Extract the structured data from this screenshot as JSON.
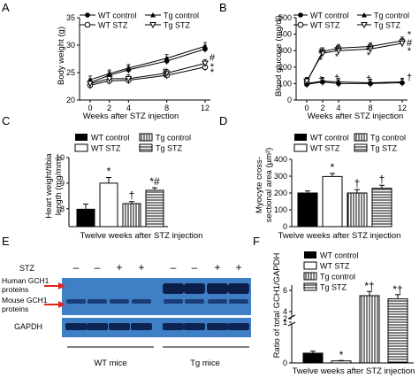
{
  "chart_data": [
    {
      "panel": "A",
      "type": "line",
      "xlabel": "Weeks after STZ injection",
      "ylabel": "Body weight (g)",
      "xticks": [
        0,
        2,
        4,
        8,
        12
      ],
      "yticks": [
        20,
        25,
        30,
        35
      ],
      "ylim": [
        20,
        35
      ],
      "legend_position": "top-left",
      "series": [
        {
          "name": "WT control",
          "marker": "filled-circle",
          "values": [
            23.2,
            24.5,
            25.5,
            27.1,
            29.3
          ]
        },
        {
          "name": "WT STZ",
          "marker": "open-circle",
          "values": [
            22.7,
            23.5,
            23.6,
            24.5,
            26.0
          ]
        },
        {
          "name": "Tg control",
          "marker": "filled-triangle",
          "values": [
            23.7,
            24.8,
            25.8,
            27.6,
            29.8
          ]
        },
        {
          "name": "Tg STZ",
          "marker": "open-triangle",
          "values": [
            23.0,
            23.9,
            23.9,
            24.9,
            26.7
          ]
        }
      ],
      "annotations": [
        {
          "text": "*",
          "x": 8,
          "y": 24.2
        },
        {
          "text": "#",
          "x": 8,
          "y": 25.3
        },
        {
          "text": "#",
          "x": 12,
          "y": 27.8
        },
        {
          "text": "*",
          "x": 12,
          "y": 26.1
        },
        {
          "text": "*",
          "x": 12,
          "y": 25.2
        }
      ]
    },
    {
      "panel": "B",
      "type": "line",
      "xlabel": "Weeks after STZ injection",
      "ylabel": "Blood glucose (mg/dl)",
      "xticks": [
        0,
        2,
        4,
        8,
        12
      ],
      "yticks": [
        0,
        100,
        200,
        300,
        400,
        500
      ],
      "ylim": [
        0,
        500
      ],
      "legend_position": "top",
      "series": [
        {
          "name": "WT control",
          "marker": "filled-circle",
          "values": [
            95,
            110,
            100,
            100,
            105
          ]
        },
        {
          "name": "WT STZ",
          "marker": "open-circle",
          "values": [
            110,
            295,
            315,
            325,
            360
          ]
        },
        {
          "name": "Tg control",
          "marker": "filled-triangle",
          "values": [
            100,
            115,
            110,
            105,
            110
          ]
        },
        {
          "name": "Tg STZ",
          "marker": "open-triangle",
          "values": [
            115,
            285,
            300,
            310,
            345
          ]
        }
      ],
      "annotations": [
        {
          "text": "#",
          "x": 2,
          "y": 300
        },
        {
          "text": "*",
          "x": 2,
          "y": 245
        },
        {
          "text": "#",
          "x": 4,
          "y": 315
        },
        {
          "text": "*",
          "x": 4,
          "y": 265
        },
        {
          "text": "#",
          "x": 8,
          "y": 320
        },
        {
          "text": "*",
          "x": 8,
          "y": 275
        },
        {
          "text": "*",
          "x": 12,
          "y": 400
        },
        {
          "text": "#",
          "x": 12,
          "y": 350
        },
        {
          "text": "*",
          "x": 12,
          "y": 300
        },
        {
          "text": "†",
          "x": 2,
          "y": 125
        },
        {
          "text": "†",
          "x": 4,
          "y": 135
        },
        {
          "text": "†",
          "x": 8,
          "y": 130
        },
        {
          "text": "†",
          "x": 12,
          "y": 140
        }
      ]
    },
    {
      "panel": "C",
      "type": "bar",
      "xlabel": "Twelve weeks after STZ injection",
      "ylabel": "Heart weight/tibia length (mg/mm)",
      "yticks": [
        8,
        9,
        10
      ],
      "ylim": [
        7.3,
        10
      ],
      "legend_position": "top",
      "categories": [
        "WT control",
        "WT STZ",
        "Tg control",
        "Tg STZ"
      ],
      "values": [
        7.98,
        9.0,
        8.2,
        8.72
      ],
      "errors": [
        0.2,
        0.22,
        0.08,
        0.1
      ],
      "labels": [
        "",
        "*",
        "†",
        "*#"
      ]
    },
    {
      "panel": "D",
      "type": "bar",
      "xlabel": "Twelve weeks after STZ injection",
      "ylabel": "Myocyte cross-sectional area (µm²)",
      "yticks": [
        0,
        100,
        200,
        300,
        400
      ],
      "ylim": [
        0,
        400
      ],
      "legend_position": "top",
      "categories": [
        "WT control",
        "WT STZ",
        "Tg control",
        "Tg STZ"
      ],
      "values": [
        200,
        298,
        200,
        228
      ],
      "errors": [
        12,
        18,
        20,
        18
      ],
      "labels": [
        "",
        "*",
        "†",
        "†"
      ]
    },
    {
      "panel": "F",
      "type": "bar",
      "xlabel": "Twelve weeks after STZ injection",
      "ylabel": "Ratio of total GCH1/GAPDH",
      "yticks": [
        0,
        1,
        2,
        4,
        6
      ],
      "ylim": [
        0,
        7
      ],
      "axis_break": true,
      "legend_position": "top-left",
      "categories": [
        "WT control",
        "WT STZ",
        "Tg control",
        "Tg STZ"
      ],
      "values": [
        0.24,
        0.05,
        5.5,
        5.2
      ],
      "errors": [
        0.05,
        0.01,
        0.4,
        0.4
      ],
      "labels": [
        "",
        "*",
        "*†",
        "*†"
      ]
    }
  ],
  "panel_letters": [
    "A",
    "B",
    "C",
    "D",
    "E",
    "F"
  ],
  "western_blot": {
    "stz_label": "STZ",
    "stz_marks": [
      "–",
      "–",
      "+",
      "+",
      "–",
      "–",
      "+",
      "+"
    ],
    "arrow_labels": [
      "Human GCH1 proteins",
      "Mouse GCH1 proteins"
    ],
    "gapdh_label": "GAPDH",
    "group_labels": [
      "WT mice",
      "Tg mice"
    ],
    "band_color": "#3e7fc6",
    "arrow_color": "#e0251e"
  }
}
